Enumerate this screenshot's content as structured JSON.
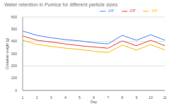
{
  "chart_data": {
    "type": "line",
    "title": "Water retention in Pumice for different particle sizes",
    "x_label": "Day",
    "y_label": "Container weight (g)",
    "categories": [
      "1",
      "2",
      "3",
      "4",
      "5",
      "6",
      "7",
      "8",
      "9",
      "10",
      "11"
    ],
    "series": [
      {
        "name": "1/8\"",
        "color": "#4285f4",
        "values": [
          485,
          450,
          430,
          415,
          405,
          390,
          380,
          450,
          410,
          455,
          410
        ]
      },
      {
        "name": "2/8\"",
        "color": "#ea4335",
        "values": [
          445,
          410,
          395,
          380,
          365,
          355,
          345,
          405,
          365,
          410,
          365
        ]
      },
      {
        "name": "3/8\"",
        "color": "#fbbc04",
        "values": [
          410,
          375,
          360,
          345,
          335,
          320,
          310,
          370,
          330,
          375,
          330
        ]
      }
    ],
    "ylim": [
      0,
      600
    ],
    "yticks": [
      0,
      100,
      200,
      300,
      400,
      500,
      600
    ],
    "grid": true,
    "legend": "top-right",
    "marker": "none"
  }
}
